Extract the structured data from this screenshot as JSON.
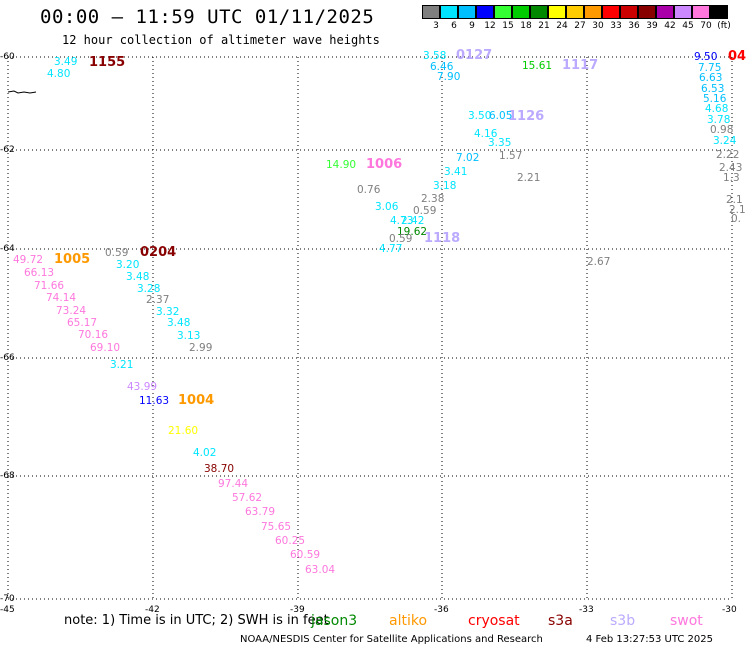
{
  "header": {
    "title": "00:00 – 11:59 UTC 01/11/2025",
    "subtitle": "12 hour collection of altimeter wave heights"
  },
  "legend": {
    "labels": [
      "3",
      "6",
      "9",
      "12",
      "15",
      "18",
      "21",
      "24",
      "27",
      "30",
      "33",
      "36",
      "39",
      "42",
      "45",
      "70",
      "(ft)"
    ],
    "colors": [
      "#7f7f7f",
      "#00e5ff",
      "#00bfff",
      "#0000ff",
      "#33ff33",
      "#00cc00",
      "#008800",
      "#ffff00",
      "#ffcc00",
      "#ff9900",
      "#ff0000",
      "#cc0000",
      "#880000",
      "#aa00aa",
      "#cc88ff",
      "#ff77dd",
      "#000000"
    ]
  },
  "map": {
    "lat_labels": [
      "-60",
      "-62",
      "-64",
      "-66",
      "-68",
      "-70"
    ],
    "lon_labels": [
      "-45",
      "-42",
      "-39",
      "-36",
      "-33",
      "-30"
    ],
    "grid_color": "#000000"
  },
  "passes": [
    {
      "label": "1155",
      "color": "#880000"
    },
    {
      "label": "0127",
      "color": "#bbaaff"
    },
    {
      "label": "1117",
      "color": "#bbaaff"
    },
    {
      "label": "04",
      "color": "#ff0000"
    },
    {
      "label": "1126",
      "color": "#bbaaff"
    },
    {
      "label": "1006",
      "color": "#ff77dd"
    },
    {
      "label": "1118",
      "color": "#bbaaff"
    },
    {
      "label": "0204",
      "color": "#880000"
    },
    {
      "label": "1005",
      "color": "#ff9900"
    },
    {
      "label": "1004",
      "color": "#ff9900"
    }
  ],
  "points": [
    {
      "v": "3.49",
      "c": "#00e5ff"
    },
    {
      "v": "4.80",
      "c": "#00e5ff"
    },
    {
      "v": "3.58",
      "c": "#00e5ff"
    },
    {
      "v": "6.46",
      "c": "#00bfff"
    },
    {
      "v": "7.90",
      "c": "#00bfff"
    },
    {
      "v": "15.61",
      "c": "#00cc00"
    },
    {
      "v": "9.50",
      "c": "#0000ff"
    },
    {
      "v": "7.75",
      "c": "#00bfff"
    },
    {
      "v": "6.63",
      "c": "#00bfff"
    },
    {
      "v": "6.53",
      "c": "#00bfff"
    },
    {
      "v": "5.16",
      "c": "#00bfff"
    },
    {
      "v": "4.68",
      "c": "#00e5ff"
    },
    {
      "v": "3.78",
      "c": "#00e5ff"
    },
    {
      "v": "0.98",
      "c": "#7f7f7f"
    },
    {
      "v": "3.24",
      "c": "#00e5ff"
    },
    {
      "v": "2.22",
      "c": "#7f7f7f"
    },
    {
      "v": "2.43",
      "c": "#7f7f7f"
    },
    {
      "v": "1.3",
      "c": "#7f7f7f"
    },
    {
      "v": "2.1",
      "c": "#7f7f7f"
    },
    {
      "v": "2.1",
      "c": "#7f7f7f"
    },
    {
      "v": "0.",
      "c": "#7f7f7f"
    },
    {
      "v": "3.50",
      "c": "#00e5ff"
    },
    {
      "v": "6.05",
      "c": "#00bfff"
    },
    {
      "v": "4.16",
      "c": "#00e5ff"
    },
    {
      "v": "3.35",
      "c": "#00e5ff"
    },
    {
      "v": "7.02",
      "c": "#00bfff"
    },
    {
      "v": "1.57",
      "c": "#7f7f7f"
    },
    {
      "v": "3.41",
      "c": "#00e5ff"
    },
    {
      "v": "2.21",
      "c": "#7f7f7f"
    },
    {
      "v": "14.90",
      "c": "#33ff33"
    },
    {
      "v": "3.18",
      "c": "#00e5ff"
    },
    {
      "v": "0.76",
      "c": "#7f7f7f"
    },
    {
      "v": "2.38",
      "c": "#7f7f7f"
    },
    {
      "v": "3.06",
      "c": "#00e5ff"
    },
    {
      "v": "0.59",
      "c": "#7f7f7f"
    },
    {
      "v": "4.73",
      "c": "#00e5ff"
    },
    {
      "v": "2.42",
      "c": "#00e5ff"
    },
    {
      "v": "19.62",
      "c": "#008800"
    },
    {
      "v": "0.59",
      "c": "#7f7f7f"
    },
    {
      "v": "4.77",
      "c": "#00e5ff"
    },
    {
      "v": "2.67",
      "c": "#7f7f7f"
    },
    {
      "v": "49.72",
      "c": "#ff77dd"
    },
    {
      "v": "0.59",
      "c": "#7f7f7f"
    },
    {
      "v": "66.13",
      "c": "#ff77dd"
    },
    {
      "v": "3.20",
      "c": "#00e5ff"
    },
    {
      "v": "71.66",
      "c": "#ff77dd"
    },
    {
      "v": "3.48",
      "c": "#00e5ff"
    },
    {
      "v": "74.14",
      "c": "#ff77dd"
    },
    {
      "v": "3.28",
      "c": "#00e5ff"
    },
    {
      "v": "2.37",
      "c": "#7f7f7f"
    },
    {
      "v": "73.24",
      "c": "#ff77dd"
    },
    {
      "v": "3.32",
      "c": "#00e5ff"
    },
    {
      "v": "65.17",
      "c": "#ff77dd"
    },
    {
      "v": "3.48",
      "c": "#00e5ff"
    },
    {
      "v": "70.16",
      "c": "#ff77dd"
    },
    {
      "v": "3.13",
      "c": "#00e5ff"
    },
    {
      "v": "69.10",
      "c": "#ff77dd"
    },
    {
      "v": "2.99",
      "c": "#7f7f7f"
    },
    {
      "v": "3.21",
      "c": "#00e5ff"
    },
    {
      "v": "43.99",
      "c": "#cc88ff"
    },
    {
      "v": "11.63",
      "c": "#0000ff"
    },
    {
      "v": "21.60",
      "c": "#ffff00"
    },
    {
      "v": "4.02",
      "c": "#00e5ff"
    },
    {
      "v": "38.70",
      "c": "#880000"
    },
    {
      "v": "97.44",
      "c": "#ff77dd"
    },
    {
      "v": "57.62",
      "c": "#ff77dd"
    },
    {
      "v": "63.79",
      "c": "#ff77dd"
    },
    {
      "v": "75.65",
      "c": "#ff77dd"
    },
    {
      "v": "60.25",
      "c": "#ff77dd"
    },
    {
      "v": "60.59",
      "c": "#ff77dd"
    },
    {
      "v": "63.04",
      "c": "#ff77dd"
    }
  ],
  "footer": {
    "note": "note:  1) Time is in UTC; 2) SWH is in feet",
    "satellites": [
      {
        "name": "jason3",
        "color": "#008800"
      },
      {
        "name": "altiko",
        "color": "#ff9900"
      },
      {
        "name": "cryosat",
        "color": "#ff0000"
      },
      {
        "name": "s3a",
        "color": "#880000"
      },
      {
        "name": "s3b",
        "color": "#bbaaff"
      },
      {
        "name": "swot",
        "color": "#ff77dd"
      }
    ],
    "credit": "NOAA/NESDIS Center for Satellite Applications and Research",
    "timestamp": "4 Feb 13:27:53 UTC 2025"
  }
}
